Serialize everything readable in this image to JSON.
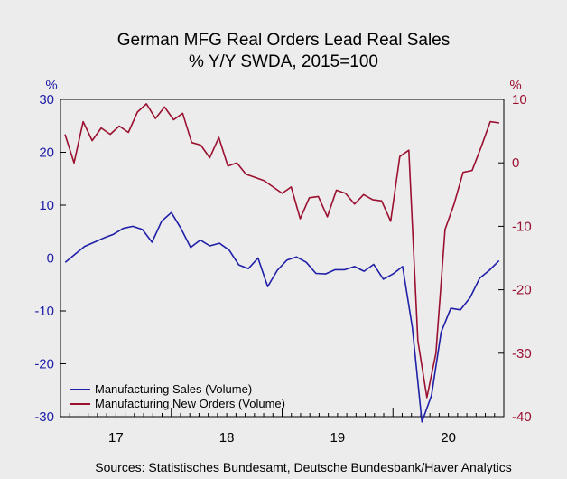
{
  "chart_data": {
    "type": "line",
    "title": "German MFG Real Orders Lead Real Sales",
    "subtitle": "% Y/Y   SWDA, 2015=100",
    "y_left": {
      "unit": "%",
      "lim": [
        -30,
        30
      ],
      "ticks": [
        30,
        20,
        10,
        0,
        -10,
        -20,
        -30
      ]
    },
    "y_right": {
      "unit": "%",
      "lim": [
        -40,
        10
      ],
      "ticks": [
        10,
        0,
        -10,
        -20,
        -30,
        -40
      ]
    },
    "x": {
      "lim": [
        0,
        48
      ],
      "tick_labels": [
        "17",
        "18",
        "19",
        "20"
      ],
      "label_positions": [
        6,
        18,
        30,
        42
      ],
      "year_boundaries": [
        12,
        24,
        36
      ]
    },
    "zero_line_left_axis": 0,
    "legend_position": "bottom-left",
    "series": [
      {
        "name": "Manufacturing Sales (Volume)",
        "axis": "left",
        "color": "#1f1fa8",
        "values": [
          -0.8,
          0.7,
          2.2,
          3.0,
          3.8,
          4.5,
          5.6,
          6.0,
          5.4,
          3.0,
          7.0,
          8.6,
          5.6,
          2.0,
          3.4,
          2.3,
          2.8,
          1.5,
          -1.3,
          -2.0,
          0.0,
          -5.4,
          -2.3,
          -0.4,
          0.2,
          -0.8,
          -2.9,
          -3.0,
          -2.2,
          -2.2,
          -1.6,
          -2.5,
          -1.2,
          -4.0,
          -3.0,
          -1.6,
          -13.0,
          -31.0,
          -26.0,
          -14.0,
          -9.5,
          -9.8,
          -7.5,
          -3.8,
          -2.3,
          -0.5
        ]
      },
      {
        "name": "Manufacturing New Orders (Volume)",
        "axis": "right",
        "color": "#9b1030",
        "values": [
          4.5,
          0.0,
          6.5,
          3.5,
          5.5,
          4.5,
          5.8,
          4.8,
          8.0,
          9.3,
          7.0,
          8.8,
          6.8,
          7.8,
          3.2,
          2.8,
          0.8,
          4.0,
          -0.5,
          0.0,
          -1.8,
          -2.3,
          -2.8,
          -3.8,
          -4.8,
          -3.8,
          -8.8,
          -5.5,
          -5.3,
          -8.5,
          -4.3,
          -4.8,
          -6.5,
          -5.0,
          -5.8,
          -6.0,
          -9.2,
          1.0,
          2.0,
          -28.0,
          -37.0,
          -30.0,
          -10.5,
          -6.5,
          -1.5,
          -1.2,
          2.5,
          6.5,
          6.3
        ]
      }
    ]
  },
  "source_line": "Sources:   Statistisches Bundesamt, Deutsche Bundesbank/Haver Analytics",
  "colors": {
    "background": "#ececec",
    "plot_border": "#000000",
    "zero_line": "#000000"
  }
}
